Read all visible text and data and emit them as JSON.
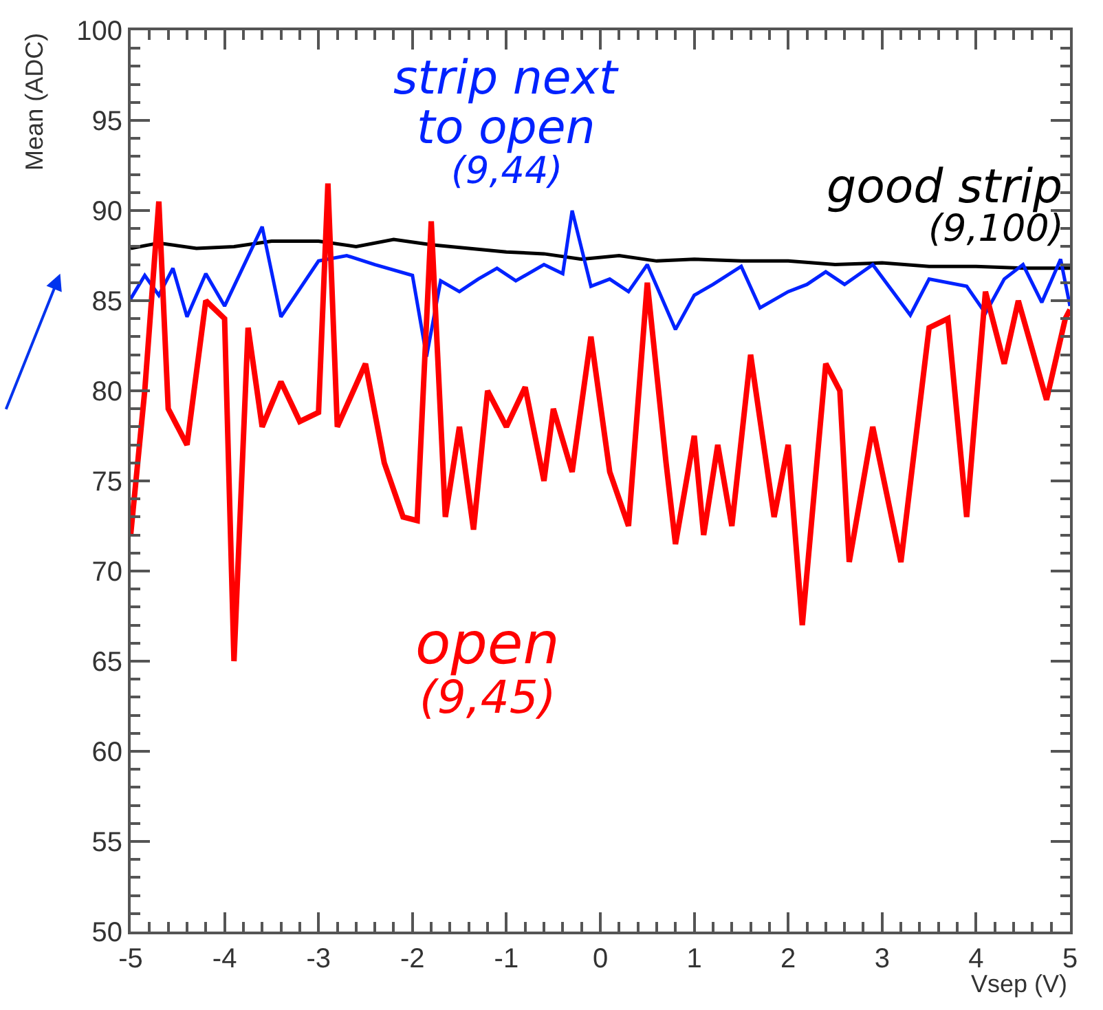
{
  "chart_data": {
    "type": "line",
    "xlabel": "Vsep (V)",
    "ylabel": "Mean (ADC)",
    "xlim": [
      -5,
      5
    ],
    "xticks": [
      -5,
      -4,
      -3,
      -2,
      -1,
      0,
      1,
      2,
      3,
      4,
      5
    ],
    "ylim": [
      50,
      100
    ],
    "yticks": [
      50,
      55,
      60,
      65,
      70,
      75,
      80,
      85,
      90,
      95,
      100
    ],
    "legend": false,
    "marker": "none",
    "line_style": "solid",
    "series": [
      {
        "name": "good strip\n(9,100)",
        "color": "#000000",
        "x": [
          -5,
          -4.7,
          -4.3,
          -3.9,
          -3.5,
          -3.0,
          -2.6,
          -2.2,
          -1.8,
          -1.4,
          -1.0,
          -0.6,
          -0.2,
          0.2,
          0.6,
          1.0,
          1.5,
          2.0,
          2.5,
          3.0,
          3.5,
          4.0,
          4.5,
          5
        ],
        "values": [
          87.9,
          88.2,
          87.9,
          88.0,
          88.3,
          88.3,
          88.0,
          88.4,
          88.1,
          87.9,
          87.7,
          87.6,
          87.3,
          87.5,
          87.2,
          87.3,
          87.2,
          87.2,
          87.0,
          87.1,
          86.9,
          86.9,
          86.8,
          86.8
        ]
      },
      {
        "name": "strip next\nto open\n(9,44)",
        "color": "#0022ff",
        "x": [
          -5,
          -4.85,
          -4.7,
          -4.55,
          -4.4,
          -4.2,
          -4.0,
          -3.6,
          -3.4,
          -3.0,
          -2.7,
          -2.4,
          -2.0,
          -1.85,
          -1.7,
          -1.5,
          -1.3,
          -1.1,
          -0.9,
          -0.6,
          -0.4,
          -0.3,
          -0.1,
          0.1,
          0.3,
          0.5,
          0.8,
          1.0,
          1.2,
          1.5,
          1.7,
          2.0,
          2.2,
          2.4,
          2.6,
          2.9,
          3.3,
          3.5,
          3.9,
          4.1,
          4.3,
          4.5,
          4.7,
          4.9,
          5
        ],
        "values": [
          85.1,
          86.4,
          85.3,
          86.8,
          84.1,
          86.5,
          84.7,
          89.1,
          84.1,
          87.2,
          87.5,
          87.0,
          86.4,
          81.9,
          86.1,
          85.5,
          86.2,
          86.8,
          86.1,
          87.0,
          86.5,
          90.0,
          85.8,
          86.2,
          85.5,
          87.0,
          83.4,
          85.3,
          85.9,
          86.9,
          84.6,
          85.5,
          85.9,
          86.6,
          85.9,
          87.0,
          84.2,
          86.2,
          85.8,
          84.3,
          86.2,
          87.0,
          84.9,
          87.3,
          84.7
        ]
      },
      {
        "name": "open\n(9,45)",
        "color": "#ff0000",
        "x": [
          -5,
          -4.85,
          -4.7,
          -4.6,
          -4.4,
          -4.2,
          -4.0,
          -3.9,
          -3.75,
          -3.6,
          -3.4,
          -3.2,
          -3.0,
          -2.9,
          -2.8,
          -2.5,
          -2.3,
          -2.1,
          -1.95,
          -1.8,
          -1.65,
          -1.5,
          -1.35,
          -1.2,
          -1.0,
          -0.8,
          -0.6,
          -0.5,
          -0.3,
          -0.1,
          0.1,
          0.3,
          0.5,
          0.7,
          0.8,
          1.0,
          1.1,
          1.25,
          1.4,
          1.6,
          1.85,
          2.0,
          2.15,
          2.4,
          2.55,
          2.65,
          2.9,
          3.2,
          3.5,
          3.7,
          3.9,
          4.1,
          4.3,
          4.45,
          4.75,
          4.95,
          5
        ],
        "values": [
          72,
          80,
          90.5,
          79,
          77,
          85,
          84,
          65,
          83.5,
          78,
          80.5,
          78.3,
          78.8,
          91.5,
          78,
          81.5,
          76,
          73,
          72.8,
          89.4,
          73,
          78,
          72.3,
          80,
          78,
          80.2,
          75,
          79,
          75.5,
          83,
          75.5,
          72.5,
          86,
          76,
          71.5,
          77.5,
          72,
          77,
          72.5,
          82,
          73,
          77,
          67,
          81.5,
          80,
          70.5,
          78,
          70.5,
          83.5,
          84,
          73,
          85.5,
          81.5,
          85,
          79.5,
          84,
          84.5
        ]
      }
    ]
  }
}
